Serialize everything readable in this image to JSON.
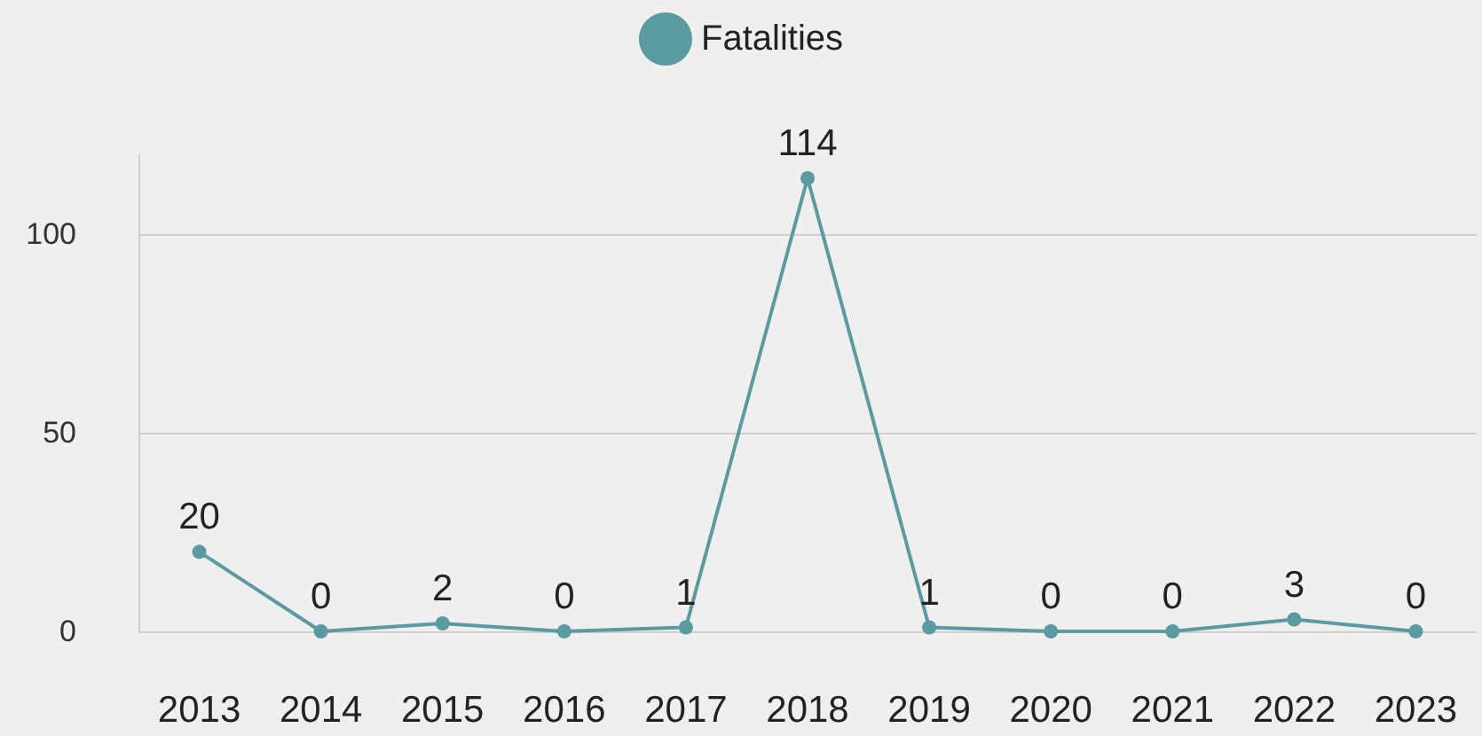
{
  "chart_data": {
    "type": "line",
    "categories": [
      "2013",
      "2014",
      "2015",
      "2016",
      "2017",
      "2018",
      "2019",
      "2020",
      "2021",
      "2022",
      "2023"
    ],
    "series": [
      {
        "name": "Fatalities",
        "color": "#5b9aa0",
        "values": [
          20,
          0,
          2,
          0,
          1,
          114,
          1,
          0,
          0,
          3,
          0
        ]
      }
    ],
    "ylim": [
      0,
      120
    ],
    "yticks": [
      0,
      50,
      100
    ],
    "grid": "y",
    "legend": "top",
    "marker": "circle",
    "data_labels": true
  }
}
